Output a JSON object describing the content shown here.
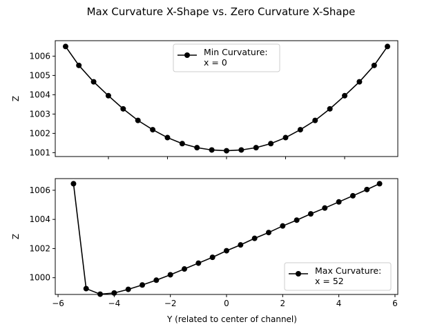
{
  "figure": {
    "title": "Max Curvature X-Shape vs. Zero Curvature X-Shape"
  },
  "chart_data": [
    {
      "type": "line",
      "xlabel": "",
      "ylabel": "Z",
      "xlim": [
        -5.8,
        5.8
      ],
      "ylim": [
        1000.8,
        1006.8
      ],
      "xticks": [
        -4,
        -2,
        0,
        2,
        4
      ],
      "xtick_labels": [
        "",
        "",
        "",
        "",
        ""
      ],
      "yticks": [
        1001,
        1002,
        1003,
        1004,
        1005,
        1006
      ],
      "ytick_labels": [
        "1001",
        "1002",
        "1003",
        "1004",
        "1005",
        "1006"
      ],
      "legend": {
        "position": "upper-center",
        "lines": [
          "Min Curvature:",
          "x = 0"
        ]
      },
      "series": [
        {
          "name": "Min Curvature: x = 0",
          "color": "#000000",
          "marker": "circle",
          "x": [
            -5.45,
            -5.0,
            -4.5,
            -4.0,
            -3.5,
            -3.0,
            -2.5,
            -2.0,
            -1.5,
            -1.0,
            -0.5,
            0.0,
            0.5,
            1.0,
            1.5,
            2.0,
            2.5,
            3.0,
            3.5,
            4.0,
            4.5,
            5.0,
            5.45
          ],
          "y": [
            1006.5,
            1005.52,
            1004.67,
            1003.95,
            1003.27,
            1002.67,
            1002.19,
            1001.78,
            1001.47,
            1001.26,
            1001.14,
            1001.1,
            1001.14,
            1001.26,
            1001.47,
            1001.78,
            1002.19,
            1002.67,
            1003.27,
            1003.95,
            1004.67,
            1005.52,
            1006.5
          ]
        }
      ]
    },
    {
      "type": "line",
      "xlabel": "Y (related to center of channel)",
      "ylabel": "Z",
      "xlim": [
        -6.1,
        6.1
      ],
      "ylim": [
        998.85,
        1006.8
      ],
      "xticks": [
        -6,
        -4,
        -2,
        0,
        2,
        4,
        6
      ],
      "xtick_labels": [
        "−6",
        "−4",
        "−2",
        "0",
        "2",
        "4",
        "6"
      ],
      "yticks": [
        1000,
        1002,
        1004,
        1006
      ],
      "ytick_labels": [
        "1000",
        "1002",
        "1004",
        "1006"
      ],
      "legend": {
        "position": "lower-right",
        "lines": [
          "Max Curvature:",
          "x = 52"
        ]
      },
      "series": [
        {
          "name": "Max Curvature: x = 52",
          "color": "#000000",
          "marker": "circle",
          "x": [
            -5.45,
            -5.0,
            -4.5,
            -4.0,
            -3.5,
            -3.0,
            -2.5,
            -2.0,
            -1.5,
            -1.0,
            -0.5,
            0.0,
            0.5,
            1.0,
            1.5,
            2.0,
            2.5,
            3.0,
            3.5,
            4.0,
            4.5,
            5.0,
            5.45
          ],
          "y": [
            1006.45,
            999.25,
            998.87,
            998.95,
            999.2,
            999.5,
            999.83,
            1000.2,
            1000.6,
            1001.0,
            1001.4,
            1001.85,
            1002.25,
            1002.7,
            1003.1,
            1003.55,
            1003.95,
            1004.38,
            1004.78,
            1005.2,
            1005.62,
            1006.05,
            1006.45
          ]
        }
      ]
    }
  ]
}
